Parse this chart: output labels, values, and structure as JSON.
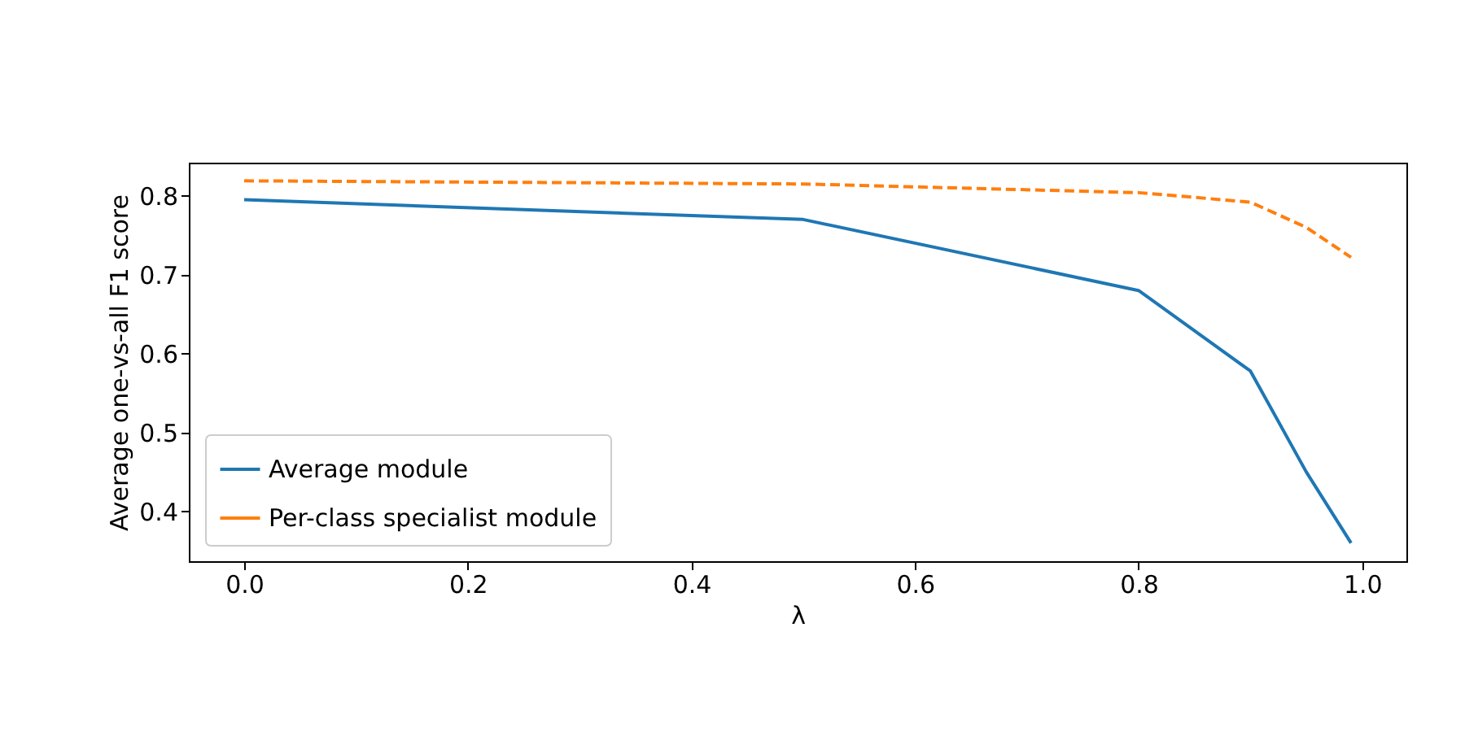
{
  "chart_data": {
    "type": "line",
    "xlabel": "λ",
    "ylabel": "Average one-vs-all F1 score",
    "x": [
      0.0,
      0.5,
      0.8,
      0.9,
      0.95,
      0.99
    ],
    "series": [
      {
        "name": "Average module",
        "color": "#1f77b4",
        "line_style": "solid",
        "values": [
          0.795,
          0.77,
          0.68,
          0.578,
          0.45,
          0.36
        ]
      },
      {
        "name": "Per-class specialist module",
        "color": "#ff7f0e",
        "line_style": "dashed",
        "values": [
          0.819,
          0.815,
          0.804,
          0.792,
          0.76,
          0.722
        ]
      }
    ],
    "xlim": [
      -0.0495,
      1.0395
    ],
    "xticks": [
      {
        "value": 0,
        "label": "0.0"
      },
      0.2,
      0.4,
      0.6,
      0.8,
      {
        "value": 1,
        "label": "1.0"
      }
    ],
    "ylim": [
      0.337,
      0.842
    ],
    "yticks": [
      0.4,
      0.5,
      0.6,
      0.7,
      0.8
    ],
    "grid": false,
    "legend": "bottom left",
    "marker": "none"
  }
}
